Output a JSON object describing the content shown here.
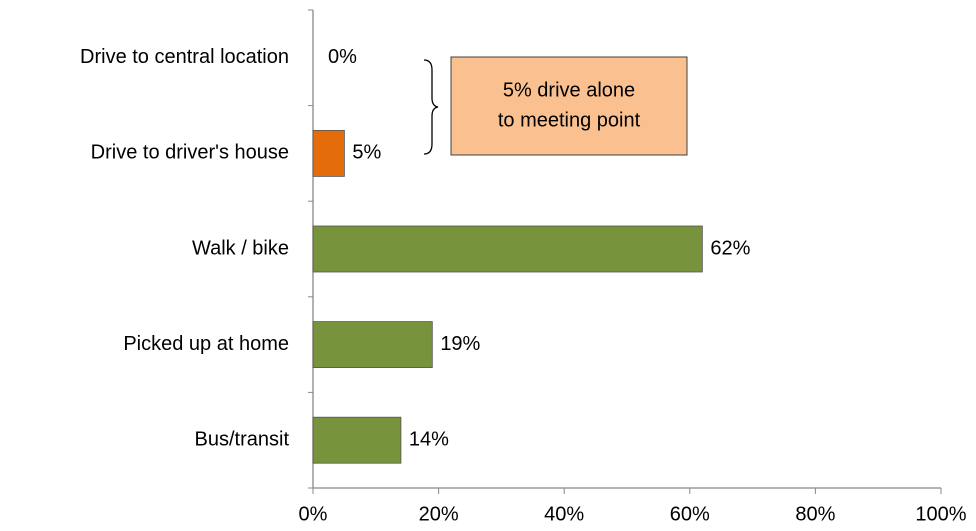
{
  "chart_data": {
    "type": "hbar",
    "categories": [
      "Drive to central location",
      "Drive to driver's house",
      "Walk / bike",
      "Picked up at home",
      "Bus/transit"
    ],
    "values": [
      0,
      5,
      62,
      19,
      14
    ],
    "value_labels": [
      "0%",
      "5%",
      "62%",
      "19%",
      "14%"
    ],
    "colors": [
      "#e46c0a",
      "#e46c0a",
      "#77933c",
      "#77933c",
      "#77933c"
    ],
    "xlim": [
      0,
      100
    ],
    "xticks": [
      {
        "value": 0,
        "label": "0%"
      },
      {
        "value": 20,
        "label": "20%"
      },
      {
        "value": 40,
        "label": "40%"
      },
      {
        "value": 60,
        "label": "60%"
      },
      {
        "value": 80,
        "label": "80%"
      },
      {
        "value": 100,
        "label": "100%"
      }
    ],
    "annotation": [
      "5% drive alone",
      "to meeting point"
    ]
  }
}
